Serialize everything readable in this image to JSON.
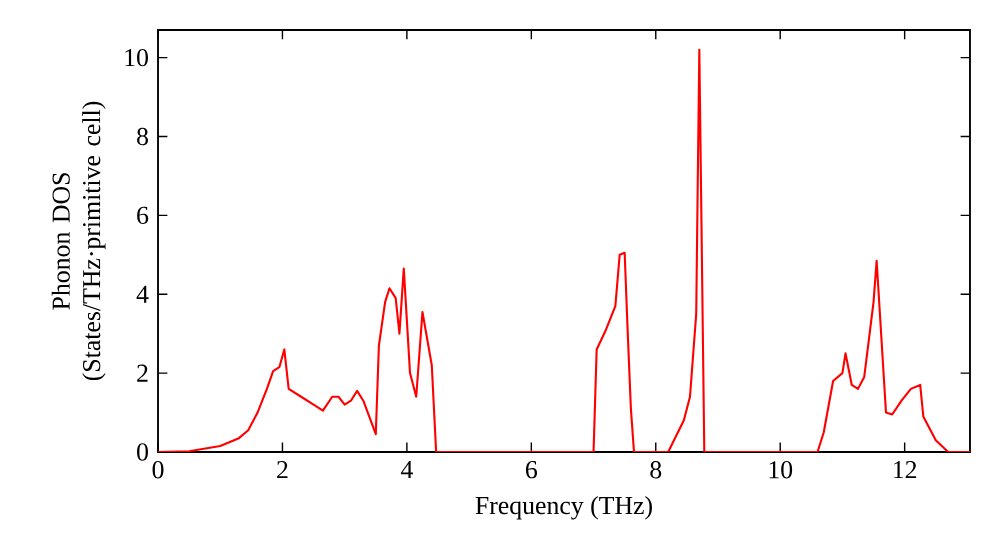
{
  "chart_data": {
    "type": "line",
    "xlabel": "Frequency (THz)",
    "ylabel": "Phonon DOS (States/THz·primitive cell)",
    "xlim": [
      0,
      13.05
    ],
    "ylim": [
      0,
      10.7
    ],
    "xticks": [
      0,
      2,
      4,
      6,
      8,
      10,
      12
    ],
    "yticks": [
      0,
      2,
      4,
      6,
      8,
      10
    ],
    "grid": false,
    "marker": "none",
    "line_style": "solid",
    "series": [
      {
        "color": "#ff0000",
        "x": [
          0,
          0.5,
          1.0,
          1.3,
          1.45,
          1.6,
          1.75,
          1.85,
          1.95,
          2.03,
          2.1,
          2.3,
          2.5,
          2.65,
          2.8,
          2.9,
          3.0,
          3.1,
          3.2,
          3.3,
          3.5,
          3.55,
          3.65,
          3.72,
          3.82,
          3.88,
          3.95,
          4.05,
          4.15,
          4.25,
          4.4,
          4.47,
          7.0,
          7.05,
          7.2,
          7.35,
          7.42,
          7.5,
          7.55,
          7.6,
          7.65,
          8.2,
          8.45,
          8.55,
          8.65,
          8.7,
          8.78,
          10.6,
          10.7,
          10.85,
          11.0,
          11.05,
          11.15,
          11.25,
          11.35,
          11.5,
          11.55,
          11.7,
          11.8,
          11.95,
          12.1,
          12.25,
          12.3,
          12.5,
          12.7,
          13.05
        ],
        "values": [
          0,
          0.02,
          0.15,
          0.35,
          0.55,
          1.0,
          1.6,
          2.05,
          2.15,
          2.6,
          1.6,
          1.4,
          1.2,
          1.05,
          1.4,
          1.4,
          1.2,
          1.3,
          1.55,
          1.3,
          0.45,
          2.7,
          3.8,
          4.15,
          3.9,
          3.0,
          4.65,
          2.0,
          1.4,
          3.55,
          2.2,
          0,
          0,
          2.6,
          3.1,
          3.7,
          5.0,
          5.05,
          3.0,
          1.1,
          0,
          0,
          0.8,
          1.4,
          3.5,
          10.2,
          0,
          0,
          0.5,
          1.8,
          2.0,
          2.5,
          1.7,
          1.6,
          1.9,
          3.8,
          4.85,
          1.0,
          0.95,
          1.3,
          1.6,
          1.7,
          0.9,
          0.3,
          0,
          0
        ]
      }
    ]
  }
}
